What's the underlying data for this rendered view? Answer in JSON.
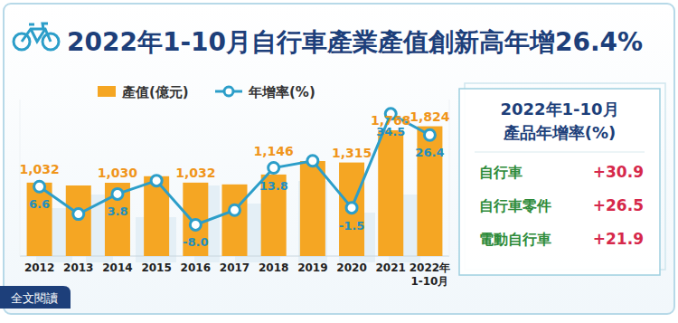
{
  "header": {
    "title": "2022年1-10月自行車產業產值創新高年增26.4%",
    "button": "全文閱讀"
  },
  "chart_data": {
    "type": "bar",
    "categories": [
      "2012",
      "2013",
      "2014",
      "2015",
      "2016",
      "2017",
      "2018",
      "2019",
      "2020",
      "2021",
      "2022年\n1-10月"
    ],
    "series": [
      {
        "name": "產值(億元)",
        "type": "bar",
        "color": "#f5a623",
        "values": [
          1032,
          992,
          1030,
          1122,
          1032,
          1007,
          1146,
          1335,
          1315,
          1768,
          1824
        ],
        "value_labels": [
          "1,032",
          null,
          "1,030",
          null,
          "1,032",
          null,
          "1,146",
          null,
          "1,315",
          "1,768",
          "1,824"
        ]
      },
      {
        "name": "年增率(%)",
        "type": "line",
        "axis": "y2",
        "color": "#2c9ec9",
        "marker": "circle",
        "values": [
          6.6,
          -3.9,
          3.8,
          8.9,
          -8.0,
          -2.4,
          13.8,
          16.5,
          -1.5,
          34.5,
          26.4
        ],
        "value_labels": [
          "6.6",
          null,
          "3.8",
          null,
          "-8.0",
          null,
          "13.8",
          null,
          "-1.5",
          "34.5",
          "26.4"
        ]
      }
    ],
    "ylim": [
      0,
      2200
    ],
    "y2lim": [
      -20,
      40
    ],
    "data_labels": true,
    "tick_labels": "x",
    "legend": "top"
  },
  "panel": {
    "title": [
      "2022年1-10月",
      "產品年增率(%)"
    ],
    "rows": [
      {
        "name": "自行車",
        "value": "+30.9"
      },
      {
        "name": "自行車零件",
        "value": "+26.5"
      },
      {
        "name": "電動自行車",
        "value": "+21.9"
      }
    ]
  }
}
